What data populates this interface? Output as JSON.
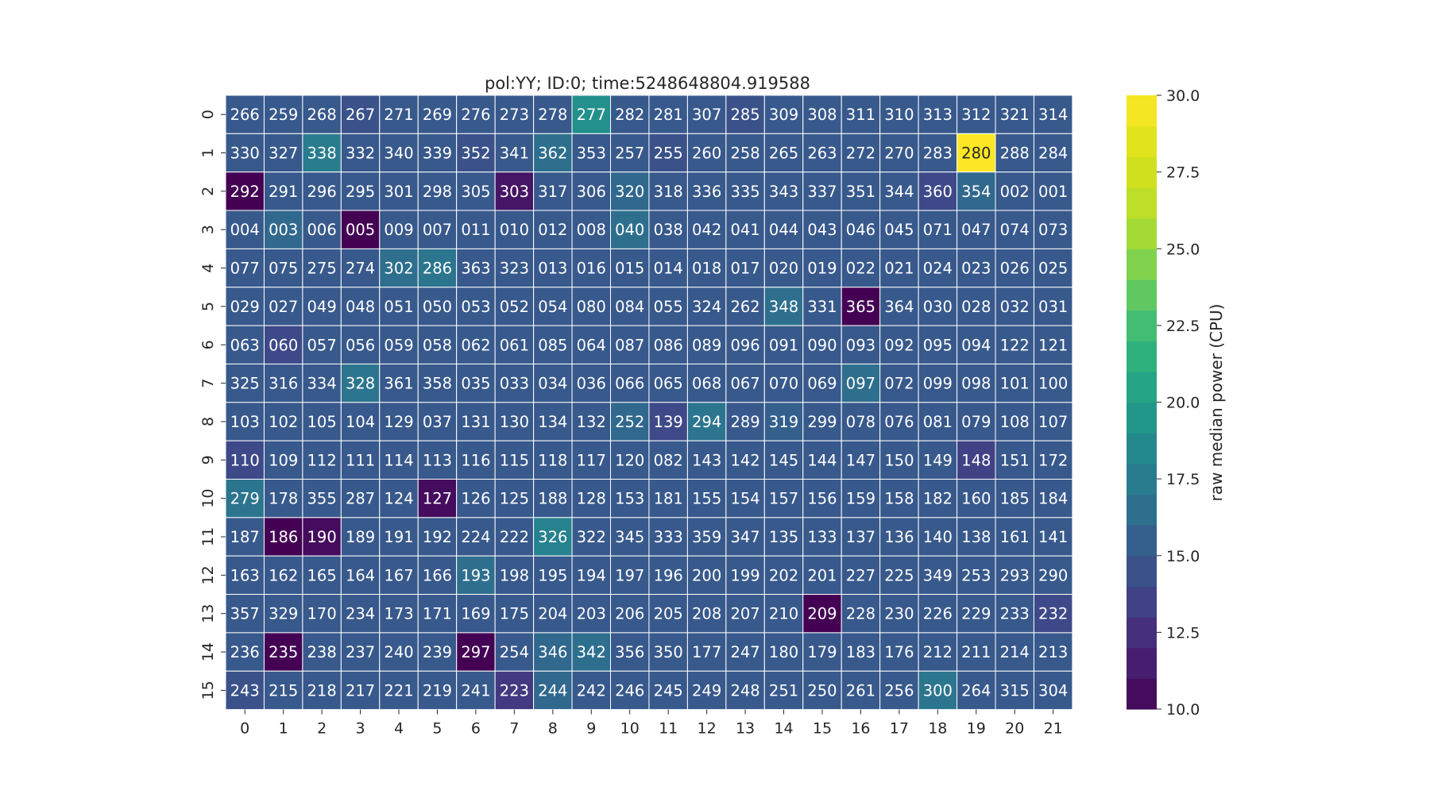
{
  "chart_data": {
    "type": "heatmap",
    "title": "pol:YY; ID:0; time:5248648804.919588",
    "x_categories": [
      "0",
      "1",
      "2",
      "3",
      "4",
      "5",
      "6",
      "7",
      "8",
      "9",
      "10",
      "11",
      "12",
      "13",
      "14",
      "15",
      "16",
      "17",
      "18",
      "19",
      "20",
      "21"
    ],
    "y_categories": [
      "0",
      "1",
      "2",
      "3",
      "4",
      "5",
      "6",
      "7",
      "8",
      "9",
      "10",
      "11",
      "12",
      "13",
      "14",
      "15"
    ],
    "annotations": [
      [
        "266",
        "259",
        "268",
        "267",
        "271",
        "269",
        "276",
        "273",
        "278",
        "277",
        "282",
        "281",
        "307",
        "285",
        "309",
        "308",
        "311",
        "310",
        "313",
        "312",
        "321",
        "314"
      ],
      [
        "330",
        "327",
        "338",
        "332",
        "340",
        "339",
        "352",
        "341",
        "362",
        "353",
        "257",
        "255",
        "260",
        "258",
        "265",
        "263",
        "272",
        "270",
        "283",
        "280",
        "288",
        "284"
      ],
      [
        "292",
        "291",
        "296",
        "295",
        "301",
        "298",
        "305",
        "303",
        "317",
        "306",
        "320",
        "318",
        "336",
        "335",
        "343",
        "337",
        "351",
        "344",
        "360",
        "354",
        "002",
        "001"
      ],
      [
        "004",
        "003",
        "006",
        "005",
        "009",
        "007",
        "011",
        "010",
        "012",
        "008",
        "040",
        "038",
        "042",
        "041",
        "044",
        "043",
        "046",
        "045",
        "071",
        "047",
        "074",
        "073"
      ],
      [
        "077",
        "075",
        "275",
        "274",
        "302",
        "286",
        "363",
        "323",
        "013",
        "016",
        "015",
        "014",
        "018",
        "017",
        "020",
        "019",
        "022",
        "021",
        "024",
        "023",
        "026",
        "025"
      ],
      [
        "029",
        "027",
        "049",
        "048",
        "051",
        "050",
        "053",
        "052",
        "054",
        "080",
        "084",
        "055",
        "324",
        "262",
        "348",
        "331",
        "365",
        "364",
        "030",
        "028",
        "032",
        "031"
      ],
      [
        "063",
        "060",
        "057",
        "056",
        "059",
        "058",
        "062",
        "061",
        "085",
        "064",
        "087",
        "086",
        "089",
        "096",
        "091",
        "090",
        "093",
        "092",
        "095",
        "094",
        "122",
        "121"
      ],
      [
        "325",
        "316",
        "334",
        "328",
        "361",
        "358",
        "035",
        "033",
        "034",
        "036",
        "066",
        "065",
        "068",
        "067",
        "070",
        "069",
        "097",
        "072",
        "099",
        "098",
        "101",
        "100"
      ],
      [
        "103",
        "102",
        "105",
        "104",
        "129",
        "037",
        "131",
        "130",
        "134",
        "132",
        "252",
        "139",
        "294",
        "289",
        "319",
        "299",
        "078",
        "076",
        "081",
        "079",
        "108",
        "107"
      ],
      [
        "110",
        "109",
        "112",
        "111",
        "114",
        "113",
        "116",
        "115",
        "118",
        "117",
        "120",
        "082",
        "143",
        "142",
        "145",
        "144",
        "147",
        "150",
        "149",
        "148",
        "151",
        "172"
      ],
      [
        "279",
        "178",
        "355",
        "287",
        "124",
        "127",
        "126",
        "125",
        "188",
        "128",
        "153",
        "181",
        "155",
        "154",
        "157",
        "156",
        "159",
        "158",
        "182",
        "160",
        "185",
        "184"
      ],
      [
        "187",
        "186",
        "190",
        "189",
        "191",
        "192",
        "224",
        "222",
        "326",
        "322",
        "345",
        "333",
        "359",
        "347",
        "135",
        "133",
        "137",
        "136",
        "140",
        "138",
        "161",
        "141"
      ],
      [
        "163",
        "162",
        "165",
        "164",
        "167",
        "166",
        "193",
        "198",
        "195",
        "194",
        "197",
        "196",
        "200",
        "199",
        "202",
        "201",
        "227",
        "225",
        "349",
        "253",
        "293",
        "290"
      ],
      [
        "357",
        "329",
        "170",
        "234",
        "173",
        "171",
        "169",
        "175",
        "204",
        "203",
        "206",
        "205",
        "208",
        "207",
        "210",
        "209",
        "228",
        "230",
        "226",
        "229",
        "233",
        "232"
      ],
      [
        "236",
        "235",
        "238",
        "237",
        "240",
        "239",
        "297",
        "254",
        "346",
        "342",
        "356",
        "350",
        "177",
        "247",
        "180",
        "179",
        "183",
        "176",
        "212",
        "211",
        "214",
        "213"
      ],
      [
        "243",
        "215",
        "218",
        "217",
        "221",
        "219",
        "241",
        "223",
        "244",
        "242",
        "246",
        "245",
        "249",
        "248",
        "251",
        "250",
        "261",
        "256",
        "300",
        "264",
        "315",
        "304"
      ]
    ],
    "values": [
      [
        15.0,
        15.0,
        15.0,
        14.5,
        15.0,
        15.0,
        15.0,
        15.0,
        15.0,
        19.0,
        15.0,
        15.0,
        15.0,
        14.5,
        15.0,
        15.0,
        15.0,
        15.0,
        15.0,
        15.0,
        15.0,
        15.0
      ],
      [
        15.0,
        15.0,
        17.5,
        15.0,
        15.0,
        15.0,
        14.5,
        15.0,
        16.5,
        15.0,
        15.0,
        14.5,
        15.0,
        15.0,
        15.0,
        15.0,
        15.0,
        15.0,
        15.0,
        30.0,
        15.0,
        15.0
      ],
      [
        10.0,
        15.0,
        15.0,
        15.0,
        15.0,
        15.0,
        15.0,
        11.0,
        15.0,
        15.0,
        16.0,
        15.0,
        15.0,
        15.0,
        15.0,
        15.0,
        15.0,
        15.0,
        14.0,
        16.0,
        15.0,
        15.0
      ],
      [
        15.0,
        16.0,
        15.0,
        10.0,
        15.0,
        15.0,
        15.0,
        15.0,
        15.0,
        15.0,
        16.5,
        15.0,
        15.0,
        15.0,
        15.0,
        15.0,
        15.0,
        15.0,
        15.0,
        15.0,
        15.0,
        15.0
      ],
      [
        15.0,
        15.0,
        15.0,
        15.0,
        16.5,
        17.0,
        15.0,
        15.0,
        15.0,
        15.0,
        15.0,
        15.0,
        15.0,
        15.0,
        15.0,
        15.0,
        15.0,
        15.0,
        15.0,
        15.0,
        15.0,
        15.0
      ],
      [
        15.0,
        15.0,
        15.0,
        15.0,
        15.0,
        15.0,
        15.0,
        15.0,
        15.0,
        15.0,
        15.0,
        15.0,
        15.0,
        15.0,
        16.5,
        15.0,
        10.0,
        15.0,
        15.0,
        15.0,
        15.0,
        15.0
      ],
      [
        15.0,
        14.0,
        15.0,
        15.0,
        15.0,
        15.0,
        15.0,
        15.0,
        15.0,
        15.0,
        15.0,
        15.0,
        15.0,
        15.0,
        15.0,
        15.0,
        15.0,
        15.0,
        15.0,
        15.0,
        15.0,
        15.0
      ],
      [
        15.0,
        15.0,
        15.0,
        17.0,
        15.0,
        15.0,
        15.0,
        15.0,
        15.0,
        15.0,
        15.0,
        15.0,
        15.0,
        15.0,
        15.0,
        15.0,
        16.5,
        15.0,
        15.0,
        15.0,
        15.0,
        15.0
      ],
      [
        15.0,
        15.0,
        15.0,
        15.0,
        15.0,
        15.0,
        15.0,
        15.0,
        15.0,
        15.0,
        16.0,
        14.0,
        17.0,
        15.0,
        15.5,
        15.0,
        15.0,
        15.0,
        15.0,
        15.0,
        15.0,
        15.0
      ],
      [
        14.0,
        15.0,
        15.0,
        15.0,
        15.0,
        15.0,
        15.0,
        15.0,
        15.0,
        15.0,
        15.0,
        15.0,
        15.0,
        15.0,
        15.0,
        15.0,
        15.0,
        15.0,
        15.0,
        13.5,
        15.0,
        15.0
      ],
      [
        17.0,
        15.0,
        15.0,
        15.0,
        15.0,
        10.5,
        15.0,
        15.0,
        15.0,
        15.0,
        15.0,
        15.0,
        15.0,
        15.0,
        15.0,
        15.0,
        15.0,
        15.0,
        15.0,
        15.0,
        15.0,
        15.0
      ],
      [
        15.0,
        10.0,
        10.5,
        15.0,
        15.0,
        15.0,
        15.0,
        15.0,
        18.0,
        15.0,
        15.0,
        15.0,
        15.0,
        15.0,
        15.0,
        15.0,
        15.0,
        15.0,
        15.0,
        15.0,
        15.0,
        15.0
      ],
      [
        15.0,
        15.0,
        15.0,
        15.0,
        15.0,
        15.0,
        16.5,
        15.0,
        15.0,
        15.0,
        15.0,
        15.0,
        15.0,
        15.0,
        15.0,
        15.0,
        15.0,
        15.0,
        15.0,
        15.0,
        15.0,
        15.0
      ],
      [
        15.0,
        15.0,
        15.0,
        15.0,
        15.0,
        15.0,
        15.0,
        15.0,
        15.0,
        15.0,
        15.0,
        15.0,
        15.0,
        15.0,
        15.0,
        10.0,
        15.0,
        15.0,
        15.0,
        15.0,
        15.0,
        14.0
      ],
      [
        15.0,
        10.0,
        15.0,
        15.0,
        15.0,
        15.0,
        10.0,
        15.0,
        16.0,
        16.5,
        15.0,
        15.0,
        15.0,
        15.0,
        15.0,
        15.0,
        15.0,
        15.0,
        15.0,
        15.0,
        15.0,
        15.0
      ],
      [
        14.5,
        15.0,
        15.0,
        15.0,
        15.0,
        15.0,
        15.0,
        13.0,
        16.0,
        15.0,
        15.0,
        15.0,
        15.0,
        15.0,
        15.0,
        15.0,
        15.0,
        15.0,
        17.0,
        15.0,
        15.0,
        15.0
      ]
    ],
    "colormap": "viridis",
    "colorbar": {
      "label": "raw median power (CPU)",
      "min": 10.0,
      "max": 30.0,
      "ticks": [
        "10.0",
        "12.5",
        "15.0",
        "17.5",
        "20.0",
        "22.5",
        "25.0",
        "27.5",
        "30.0"
      ]
    }
  }
}
